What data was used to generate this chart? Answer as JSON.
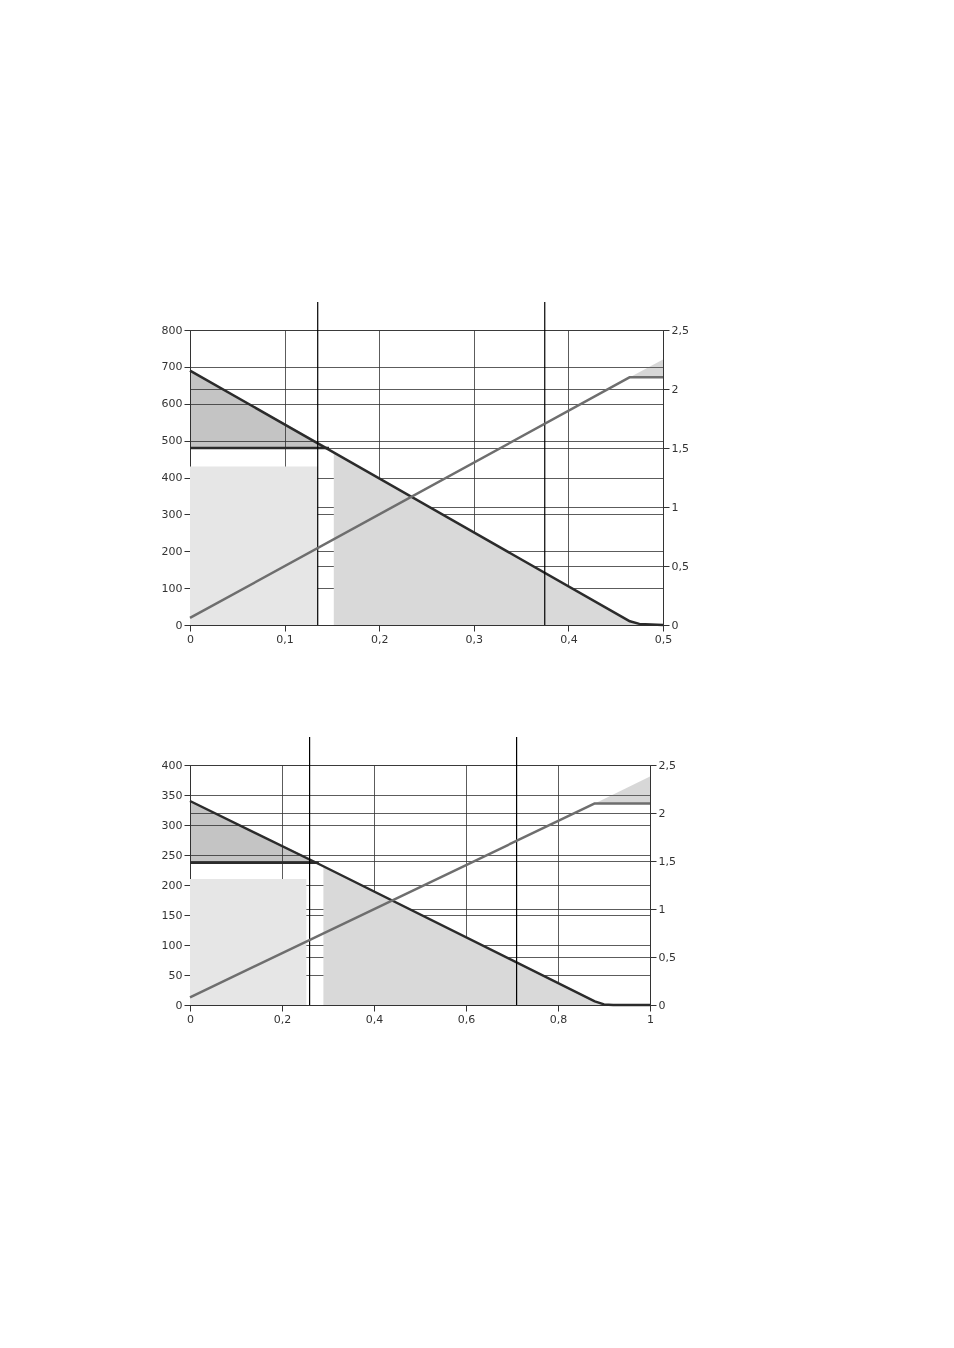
{
  "chart_data": [
    {
      "type": "line",
      "xlim": [
        0,
        0.5
      ],
      "xticks": [
        0,
        {
          "value": 0.1,
          "label": "0,1"
        },
        {
          "value": 0.2,
          "label": "0,2"
        },
        {
          "value": 0.3,
          "label": "0,3"
        },
        {
          "value": 0.4,
          "label": "0,4"
        },
        {
          "value": 0.5,
          "label": "0,5"
        }
      ],
      "ylim": [
        0,
        800
      ],
      "yticks": [
        0,
        100,
        200,
        300,
        400,
        500,
        600,
        700,
        800
      ],
      "y2lim": [
        0,
        2.5
      ],
      "y2ticks": [
        0,
        {
          "value": 0.5,
          "label": "0,5"
        },
        1,
        {
          "value": 1.5,
          "label": "1,5"
        },
        2,
        {
          "value": 2.5,
          "label": "2,5"
        }
      ],
      "grid": true,
      "series": [
        {
          "type": "area",
          "color": "#e6e6e6",
          "x": [
            0,
            0.135
          ],
          "values": [
            430,
            430
          ]
        },
        {
          "type": "area",
          "color": "#d9d9d9",
          "x": [
            0.152,
            0.465,
            0.475,
            0.5
          ],
          "values": [
            468,
            10,
            3,
            0
          ]
        },
        {
          "color": "#2b2b2b",
          "x": [
            0,
            0.147
          ],
          "values": [
            480,
            480
          ],
          "lower": [
            480,
            480
          ],
          "upper": [
            690,
            480
          ]
        },
        {
          "color": "#2b2b2b",
          "x": [
            0,
            0.465,
            0.475,
            0.5
          ],
          "values": [
            690,
            10,
            3,
            0
          ]
        },
        {
          "axis": "y2",
          "color": "#6e6e6e",
          "x": [
            0,
            0.465,
            0.5
          ],
          "values": [
            0.06,
            2.1,
            2.1
          ],
          "lower": [
            0.06,
            2.1,
            2.1
          ],
          "upper": [
            0.06,
            2.1,
            2.25
          ]
        }
      ],
      "ref_lines": [
        {
          "axis": "x",
          "value": 0.135,
          "color": "#000000"
        },
        {
          "axis": "x",
          "value": 0.375,
          "color": "#000000"
        }
      ]
    },
    {
      "type": "line",
      "xlim": [
        0,
        1
      ],
      "xticks": [
        0,
        {
          "value": 0.2,
          "label": "0,2"
        },
        {
          "value": 0.4,
          "label": "0,4"
        },
        {
          "value": 0.6,
          "label": "0,6"
        },
        {
          "value": 0.8,
          "label": "0,8"
        },
        1
      ],
      "ylim": [
        0,
        400
      ],
      "yticks": [
        0,
        50,
        100,
        150,
        200,
        250,
        300,
        350,
        400
      ],
      "y2lim": [
        0,
        2.5
      ],
      "y2ticks": [
        0,
        {
          "value": 0.5,
          "label": "0,5"
        },
        1,
        {
          "value": 1.5,
          "label": "1,5"
        },
        2,
        {
          "value": 2.5,
          "label": "2,5"
        }
      ],
      "grid": true,
      "series": [
        {
          "type": "area",
          "color": "#e6e6e6",
          "x": [
            0,
            0.253
          ],
          "values": [
            210,
            210
          ]
        },
        {
          "type": "area",
          "color": "#d9d9d9",
          "x": [
            0.29,
            0.88,
            0.9,
            0.92
          ],
          "values": [
            230,
            6,
            1,
            0
          ]
        },
        {
          "color": "#2b2b2b",
          "x": [
            0,
            0.28
          ],
          "values": [
            237,
            237
          ],
          "lower": [
            237,
            237
          ],
          "upper": [
            340,
            237
          ]
        },
        {
          "color": "#2b2b2b",
          "x": [
            0,
            0.28,
            0.88,
            0.9,
            0.92,
            1
          ],
          "values": [
            340,
            235,
            6,
            1,
            0,
            0
          ]
        },
        {
          "axis": "y2",
          "color": "#6e6e6e",
          "x": [
            0,
            0.88,
            1
          ],
          "values": [
            0.08,
            2.1,
            2.1
          ],
          "lower": [
            0.08,
            2.1,
            2.1
          ],
          "upper": [
            0.08,
            2.1,
            2.38
          ]
        }
      ],
      "ref_lines": [
        {
          "axis": "x",
          "value": 0.26,
          "color": "#000000"
        },
        {
          "axis": "x",
          "value": 0.71,
          "color": "#000000"
        }
      ]
    }
  ]
}
